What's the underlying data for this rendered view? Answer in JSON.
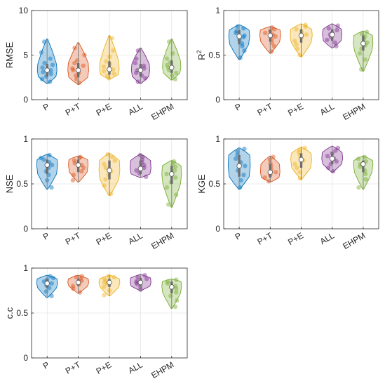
{
  "colors": {
    "P": "#0072BD",
    "P+T": "#D95319",
    "P+E": "#EDB120",
    "ALL": "#7E2F8E",
    "EHPM": "#77AC30"
  },
  "chart_data": [
    {
      "type": "violin",
      "ylabel": "RMSE",
      "ylabel_super": "",
      "ylim": [
        0,
        10
      ],
      "yticks": [
        "0",
        "5",
        "10"
      ],
      "ytick_values": [
        0,
        5,
        10
      ],
      "categories": [
        "P",
        "P+T",
        "P+E",
        "ALL",
        "EHPM"
      ],
      "series": [
        {
          "min": 1.8,
          "max": 6.8,
          "median": 3.3,
          "q1": 2.6,
          "q3": 4.0,
          "width": 0.75,
          "points": [
            2.0,
            2.3,
            2.6,
            2.9,
            3.1,
            3.3,
            3.6,
            3.9,
            4.1,
            4.6,
            5.3,
            6.5
          ]
        },
        {
          "min": 1.7,
          "max": 6.4,
          "median": 3.3,
          "q1": 2.5,
          "q3": 4.1,
          "width": 0.8,
          "points": [
            1.9,
            2.3,
            2.7,
            3.0,
            3.3,
            3.5,
            3.8,
            4.1,
            4.4,
            5.0,
            5.8
          ]
        },
        {
          "min": 2.3,
          "max": 7.2,
          "median": 3.4,
          "q1": 2.8,
          "q3": 4.3,
          "width": 0.75,
          "points": [
            2.4,
            2.7,
            2.9,
            3.2,
            3.4,
            3.7,
            4.0,
            4.3,
            4.8,
            5.5,
            6.9
          ]
        },
        {
          "min": 1.8,
          "max": 5.8,
          "median": 3.3,
          "q1": 2.6,
          "q3": 4.0,
          "width": 0.7,
          "points": [
            2.0,
            2.4,
            2.7,
            3.0,
            3.3,
            3.5,
            3.8,
            4.1,
            4.6,
            5.5
          ]
        },
        {
          "min": 2.2,
          "max": 6.8,
          "median": 3.6,
          "q1": 3.0,
          "q3": 4.4,
          "width": 0.7,
          "points": [
            2.3,
            2.7,
            3.0,
            3.3,
            3.6,
            3.9,
            4.2,
            4.6,
            5.2,
            6.5
          ]
        }
      ]
    },
    {
      "type": "violin",
      "ylabel": "R",
      "ylabel_super": "2",
      "ylim": [
        0,
        1
      ],
      "yticks": [
        "0",
        "0.5",
        "1"
      ],
      "ytick_values": [
        0,
        0.5,
        1
      ],
      "categories": [
        "P",
        "P+T",
        "P+E",
        "ALL",
        "EHPM"
      ],
      "series": [
        {
          "min": 0.45,
          "max": 0.84,
          "median": 0.71,
          "q1": 0.62,
          "q3": 0.78,
          "width": 0.8,
          "points": [
            0.47,
            0.55,
            0.6,
            0.63,
            0.67,
            0.7,
            0.72,
            0.75,
            0.77,
            0.8,
            0.82
          ]
        },
        {
          "min": 0.52,
          "max": 0.82,
          "median": 0.72,
          "q1": 0.65,
          "q3": 0.78,
          "width": 0.8,
          "points": [
            0.54,
            0.6,
            0.64,
            0.68,
            0.71,
            0.73,
            0.75,
            0.77,
            0.79,
            0.81
          ]
        },
        {
          "min": 0.48,
          "max": 0.85,
          "median": 0.72,
          "q1": 0.64,
          "q3": 0.79,
          "width": 0.85,
          "points": [
            0.5,
            0.57,
            0.62,
            0.66,
            0.7,
            0.73,
            0.76,
            0.79,
            0.82,
            0.84
          ]
        },
        {
          "min": 0.58,
          "max": 0.85,
          "median": 0.73,
          "q1": 0.66,
          "q3": 0.79,
          "width": 0.75,
          "points": [
            0.6,
            0.64,
            0.67,
            0.7,
            0.73,
            0.75,
            0.78,
            0.8,
            0.83
          ]
        },
        {
          "min": 0.32,
          "max": 0.77,
          "median": 0.63,
          "q1": 0.55,
          "q3": 0.72,
          "width": 0.75,
          "points": [
            0.34,
            0.45,
            0.52,
            0.57,
            0.61,
            0.64,
            0.68,
            0.71,
            0.74,
            0.76
          ]
        }
      ]
    },
    {
      "type": "violin",
      "ylabel": "NSE",
      "ylabel_super": "",
      "ylim": [
        0,
        1
      ],
      "yticks": [
        "0",
        "0.5",
        "1"
      ],
      "ytick_values": [
        0,
        0.5,
        1
      ],
      "categories": [
        "P",
        "P+T",
        "P+E",
        "ALL",
        "EHPM"
      ],
      "series": [
        {
          "min": 0.44,
          "max": 0.83,
          "median": 0.71,
          "q1": 0.61,
          "q3": 0.77,
          "width": 0.8,
          "points": [
            0.46,
            0.54,
            0.6,
            0.64,
            0.68,
            0.71,
            0.74,
            0.77,
            0.79,
            0.82
          ]
        },
        {
          "min": 0.52,
          "max": 0.81,
          "median": 0.71,
          "q1": 0.63,
          "q3": 0.77,
          "width": 0.75,
          "points": [
            0.54,
            0.6,
            0.64,
            0.68,
            0.71,
            0.73,
            0.76,
            0.79,
            0.8
          ]
        },
        {
          "min": 0.37,
          "max": 0.84,
          "median": 0.65,
          "q1": 0.55,
          "q3": 0.76,
          "width": 0.8,
          "points": [
            0.39,
            0.48,
            0.55,
            0.6,
            0.64,
            0.68,
            0.72,
            0.76,
            0.8,
            0.83
          ]
        },
        {
          "min": 0.57,
          "max": 0.83,
          "median": 0.67,
          "q1": 0.61,
          "q3": 0.76,
          "width": 0.8,
          "points": [
            0.58,
            0.62,
            0.65,
            0.68,
            0.71,
            0.74,
            0.77,
            0.8,
            0.82
          ]
        },
        {
          "min": 0.24,
          "max": 0.76,
          "median": 0.61,
          "q1": 0.5,
          "q3": 0.7,
          "width": 0.75,
          "points": [
            0.27,
            0.38,
            0.46,
            0.52,
            0.57,
            0.61,
            0.65,
            0.69,
            0.72,
            0.75
          ]
        }
      ]
    },
    {
      "type": "violin",
      "ylabel": "KGE",
      "ylabel_super": "",
      "ylim": [
        0,
        1
      ],
      "yticks": [
        "0",
        "0.5",
        "1"
      ],
      "ytick_values": [
        0,
        0.5,
        1
      ],
      "categories": [
        "P",
        "P+T",
        "P+E",
        "ALL",
        "EHPM"
      ],
      "series": [
        {
          "min": 0.44,
          "max": 0.9,
          "median": 0.7,
          "q1": 0.58,
          "q3": 0.82,
          "width": 0.85,
          "points": [
            0.46,
            0.54,
            0.6,
            0.65,
            0.7,
            0.74,
            0.78,
            0.82,
            0.86,
            0.89
          ]
        },
        {
          "min": 0.52,
          "max": 0.81,
          "median": 0.63,
          "q1": 0.57,
          "q3": 0.72,
          "width": 0.75,
          "points": [
            0.53,
            0.57,
            0.6,
            0.63,
            0.66,
            0.7,
            0.73,
            0.77,
            0.8
          ]
        },
        {
          "min": 0.55,
          "max": 0.91,
          "median": 0.77,
          "q1": 0.68,
          "q3": 0.84,
          "width": 0.8,
          "points": [
            0.56,
            0.63,
            0.68,
            0.72,
            0.76,
            0.79,
            0.82,
            0.85,
            0.88,
            0.9
          ]
        },
        {
          "min": 0.63,
          "max": 0.92,
          "median": 0.78,
          "q1": 0.72,
          "q3": 0.85,
          "width": 0.8,
          "points": [
            0.64,
            0.68,
            0.72,
            0.75,
            0.78,
            0.81,
            0.84,
            0.87,
            0.9
          ]
        },
        {
          "min": 0.44,
          "max": 0.81,
          "median": 0.72,
          "q1": 0.63,
          "q3": 0.76,
          "width": 0.75,
          "points": [
            0.46,
            0.55,
            0.61,
            0.65,
            0.69,
            0.72,
            0.75,
            0.78,
            0.8
          ]
        }
      ]
    },
    {
      "type": "violin",
      "ylabel": "c.c",
      "ylabel_super": "",
      "ylim": [
        0,
        1
      ],
      "yticks": [
        "0",
        "0.5",
        "1"
      ],
      "ytick_values": [
        0,
        0.5,
        1
      ],
      "categories": [
        "P",
        "P+T",
        "P+E",
        "ALL",
        "EHPM"
      ],
      "series": [
        {
          "min": 0.67,
          "max": 0.92,
          "median": 0.83,
          "q1": 0.78,
          "q3": 0.88,
          "width": 0.8,
          "points": [
            0.69,
            0.74,
            0.78,
            0.81,
            0.83,
            0.85,
            0.87,
            0.89,
            0.91
          ]
        },
        {
          "min": 0.72,
          "max": 0.92,
          "median": 0.84,
          "q1": 0.8,
          "q3": 0.88,
          "width": 0.8,
          "points": [
            0.73,
            0.77,
            0.8,
            0.82,
            0.84,
            0.86,
            0.88,
            0.9,
            0.91
          ]
        },
        {
          "min": 0.69,
          "max": 0.92,
          "median": 0.84,
          "q1": 0.79,
          "q3": 0.88,
          "width": 0.8,
          "points": [
            0.7,
            0.75,
            0.79,
            0.82,
            0.84,
            0.86,
            0.88,
            0.9,
            0.91
          ]
        },
        {
          "min": 0.75,
          "max": 0.93,
          "median": 0.84,
          "q1": 0.8,
          "q3": 0.89,
          "width": 0.8,
          "points": [
            0.76,
            0.79,
            0.82,
            0.84,
            0.86,
            0.88,
            0.9,
            0.92
          ]
        },
        {
          "min": 0.55,
          "max": 0.88,
          "median": 0.79,
          "q1": 0.72,
          "q3": 0.85,
          "width": 0.75,
          "points": [
            0.57,
            0.64,
            0.69,
            0.73,
            0.77,
            0.8,
            0.83,
            0.85,
            0.87
          ]
        }
      ]
    }
  ]
}
